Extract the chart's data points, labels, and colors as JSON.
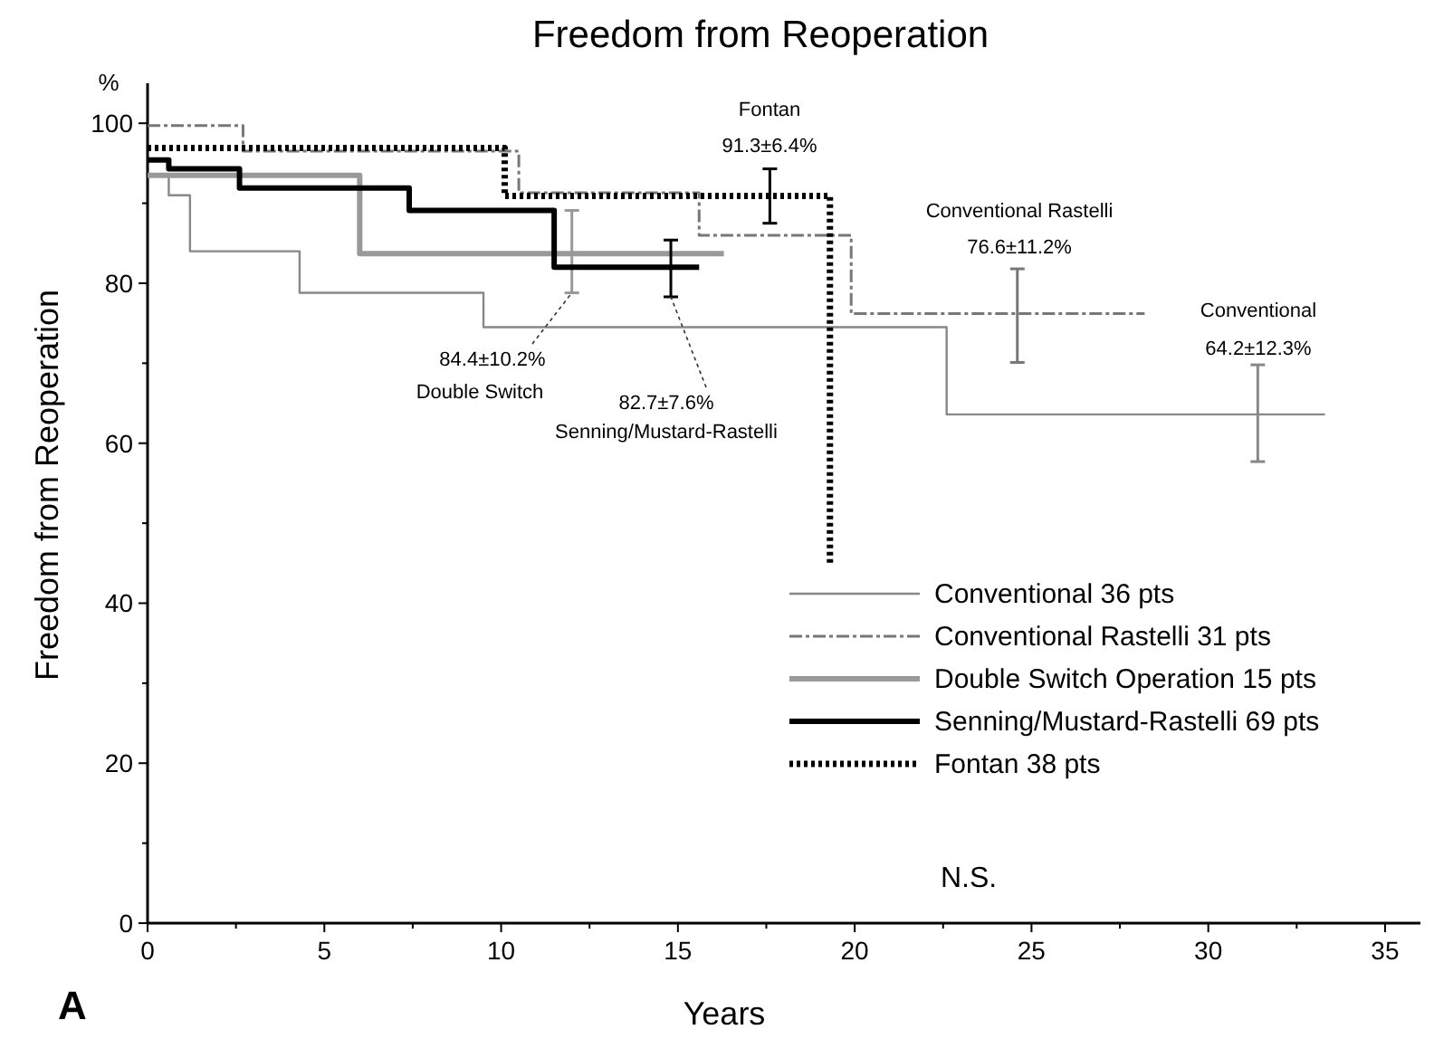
{
  "chart_data": {
    "type": "step",
    "title": "Freedom from Reoperation",
    "xlabel": "Years",
    "ylabel": "Freedom from Reoperation",
    "xlim": [
      0,
      36
    ],
    "ylim": [
      0,
      105
    ],
    "xticks": [
      0,
      {
        "value": 2.5,
        "label": null
      },
      5,
      {
        "value": 7.5,
        "label": null
      },
      10,
      {
        "value": 12.5,
        "label": null
      },
      15,
      {
        "value": 17.5,
        "label": null
      },
      20,
      {
        "value": 22.5,
        "label": null
      },
      25,
      {
        "value": 27.5,
        "label": null
      },
      30,
      {
        "value": 32.5,
        "label": null
      },
      35
    ],
    "yticks": [
      0,
      {
        "value": 10,
        "label": null
      },
      20,
      {
        "value": 30,
        "label": null
      },
      40,
      {
        "value": 50,
        "label": null
      },
      60,
      {
        "value": 70,
        "label": null
      },
      80,
      {
        "value": 90,
        "label": null
      },
      100
    ],
    "grid": false,
    "legend": "bottom right",
    "series": [
      {
        "name": "Conventional 36 pts",
        "color": "#888888",
        "line_style": "solid",
        "x": [
          0,
          0.6,
          1.2,
          4.3,
          9.5,
          22.6,
          31.4,
          33.3
        ],
        "values": [
          93.5,
          91,
          84,
          78.8,
          74.5,
          63.6,
          63.6,
          63.6
        ],
        "errors": [
          null,
          null,
          null,
          null,
          null,
          null,
          [
            57.7,
            69.8
          ],
          null
        ]
      },
      {
        "name": "Conventional Rastelli 31 pts",
        "color": "#777777",
        "line_style": "dashed",
        "x": [
          0,
          2.7,
          10.5,
          15.6,
          19.9,
          24.6,
          28.2
        ],
        "values": [
          99.7,
          96.5,
          91.3,
          86,
          76.2,
          76.2,
          76.2
        ],
        "errors": [
          null,
          null,
          null,
          null,
          null,
          [
            70.1,
            81.8
          ],
          null
        ]
      },
      {
        "name": "Double Switch Operation 15 pts",
        "color": "#999999",
        "line_style": "solid",
        "x": [
          0,
          6,
          12,
          16.3
        ],
        "values": [
          93.5,
          83.7,
          83.7,
          83.7
        ],
        "errors": [
          null,
          null,
          [
            78.8,
            89.1
          ],
          null
        ]
      },
      {
        "name": "Senning/Mustard-Rastelli 69 pts",
        "color": "#000000",
        "line_style": "solid",
        "x": [
          0,
          0.6,
          2.6,
          7.4,
          11.5,
          14.8,
          15.6
        ],
        "values": [
          95.4,
          94.3,
          91.9,
          89.1,
          82,
          82,
          82
        ],
        "errors": [
          null,
          null,
          null,
          null,
          null,
          [
            78.3,
            85.4
          ],
          null
        ]
      },
      {
        "name": "Fontan 38 pts",
        "color": "#000000",
        "line_style": "dotted",
        "x": [
          0,
          10.1,
          17.6,
          19.3
        ],
        "values": [
          96.9,
          90.9,
          90.9,
          44.9
        ],
        "errors": [
          null,
          null,
          [
            87.5,
            94.3
          ],
          null
        ]
      }
    ],
    "annotations": [
      "Fontan",
      "91.3±6.4%",
      "Conventional Rastelli",
      "76.6±11.2%",
      "Conventional",
      "64.2±12.3%",
      {
        "text": "84.4±10.2%",
        "x": 12,
        "y": 78.8
      },
      "Double Switch",
      {
        "text": "82.7±7.6%",
        "x": 14.8,
        "y": 78.3
      },
      "Senning/Mustard-Rastelli",
      "N.S.",
      "A",
      "%"
    ]
  }
}
